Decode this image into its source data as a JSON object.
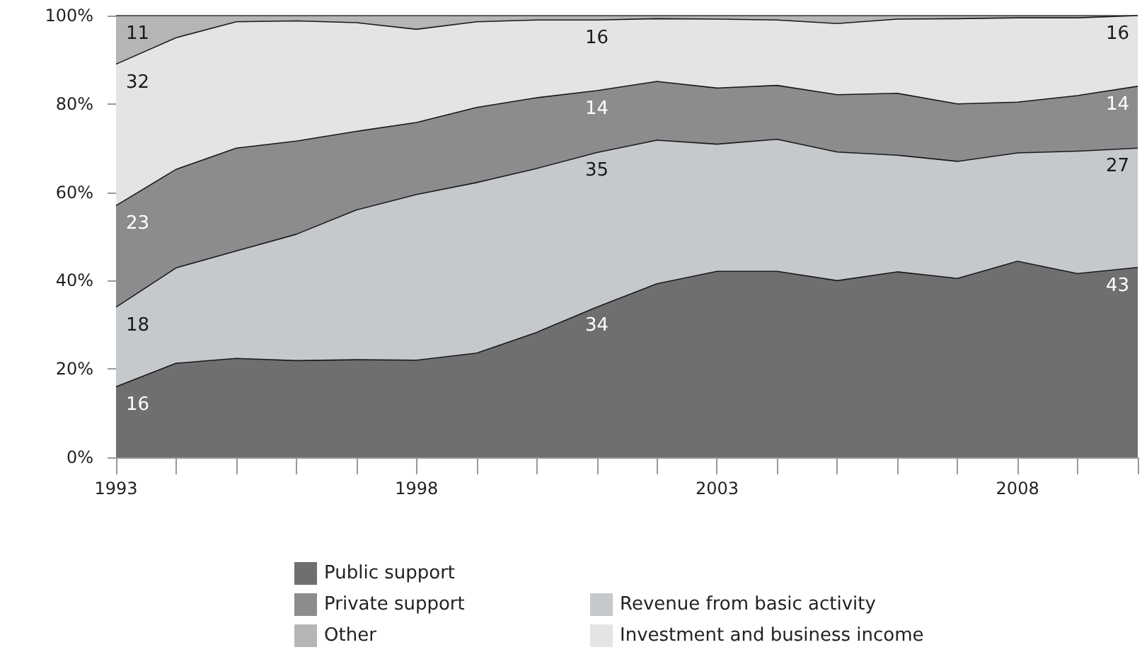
{
  "chart_data": {
    "type": "area",
    "stacked": true,
    "categories": [
      "1993",
      null,
      null,
      null,
      null,
      "1998",
      null,
      null,
      null,
      null,
      "2003",
      null,
      null,
      null,
      null,
      "2008",
      null,
      null
    ],
    "ylim": [
      0,
      100
    ],
    "yticks": [
      {
        "value": 0,
        "label": "0%"
      },
      {
        "value": 20,
        "label": "20%"
      },
      {
        "value": 40,
        "label": "40%"
      },
      {
        "value": 60,
        "label": "60%"
      },
      {
        "value": 80,
        "label": "80%"
      },
      {
        "value": 100,
        "label": "100%"
      }
    ],
    "series": [
      {
        "name": "Public support",
        "color": "#6f6e70",
        "values": [
          16,
          21.3,
          22.4,
          21.9,
          22.1,
          22.0,
          23.6,
          28.3,
          34,
          39.3,
          42.1,
          42.1,
          40.0,
          42.0,
          40.5,
          44.4,
          41.6,
          43
        ],
        "value_labels": [
          "16",
          null,
          null,
          null,
          null,
          null,
          null,
          null,
          "34",
          null,
          null,
          null,
          null,
          null,
          null,
          null,
          null,
          "43"
        ]
      },
      {
        "name": "Revenue from basic activity",
        "color": "#c6c9cb",
        "values": [
          18,
          21.6,
          24.3,
          28.6,
          33.9,
          37.5,
          38.6,
          37.1,
          35,
          32.5,
          28.8,
          29.9,
          29.1,
          26.4,
          26.5,
          24.5,
          27.7,
          27
        ],
        "value_labels": [
          "18",
          null,
          null,
          null,
          null,
          null,
          null,
          null,
          "35",
          null,
          null,
          null,
          null,
          null,
          null,
          null,
          null,
          "27"
        ]
      },
      {
        "name": "Private support",
        "color": "#8c8b8d",
        "values": [
          23,
          22.3,
          23.3,
          21.1,
          17.8,
          16.3,
          17.0,
          16.0,
          14,
          13.3,
          12.7,
          12.2,
          13.0,
          14.0,
          13.0,
          11.5,
          12.6,
          14
        ],
        "value_labels": [
          "23",
          null,
          null,
          null,
          null,
          null,
          null,
          null,
          "14",
          null,
          null,
          null,
          null,
          null,
          null,
          null,
          null,
          "14"
        ]
      },
      {
        "name": "Investment and business income",
        "color": "#e4e4e4",
        "values": [
          32,
          29.8,
          28.6,
          27.2,
          24.6,
          21.1,
          19.4,
          17.6,
          16,
          14.2,
          15.6,
          14.8,
          16.1,
          16.8,
          19.3,
          19.1,
          17.6,
          16
        ],
        "value_labels": [
          "32",
          null,
          null,
          null,
          null,
          null,
          null,
          null,
          "16",
          null,
          null,
          null,
          null,
          null,
          null,
          null,
          null,
          "16"
        ]
      },
      {
        "name": "Other",
        "color": "#b3b5b7",
        "values": [
          11,
          5.0,
          1.4,
          1.2,
          1.6,
          3.1,
          1.4,
          1.0,
          1,
          0.7,
          0.8,
          1.0,
          1.8,
          0.8,
          0.7,
          0.5,
          0.5,
          0
        ],
        "value_labels": [
          "11",
          null,
          null,
          null,
          null,
          null,
          null,
          null,
          null,
          null,
          null,
          null,
          null,
          null,
          null,
          null,
          null,
          null
        ]
      }
    ],
    "legend": "bottom"
  }
}
